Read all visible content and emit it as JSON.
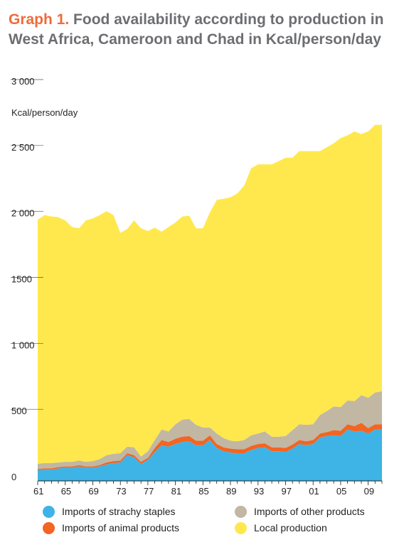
{
  "title": {
    "prefix": "Graph 1.",
    "text": "Food availability according to production in West Africa, Cameroon and Chad in Kcal/person/day"
  },
  "chart_data": {
    "type": "area",
    "stacked": true,
    "unit_label": "Kcal/person/day",
    "x": [
      1961,
      1962,
      1963,
      1964,
      1965,
      1966,
      1967,
      1968,
      1969,
      1970,
      1971,
      1972,
      1973,
      1974,
      1975,
      1976,
      1977,
      1978,
      1979,
      1980,
      1981,
      1982,
      1983,
      1984,
      1985,
      1986,
      1987,
      1988,
      1989,
      1990,
      1991,
      1992,
      1993,
      1994,
      1995,
      1996,
      1997,
      1998,
      1999,
      2000,
      2001,
      2002,
      2003,
      2004,
      2005,
      2006,
      2007,
      2008,
      2009,
      2010,
      2011
    ],
    "x_tick_labels": [
      "61",
      "65",
      "69",
      "73",
      "77",
      "81",
      "85",
      "89",
      "93",
      "97",
      "01",
      "05",
      "09"
    ],
    "x_tick_values": [
      1961,
      1965,
      1969,
      1973,
      1977,
      1981,
      1985,
      1989,
      1993,
      1997,
      2001,
      2005,
      2009
    ],
    "y_tick_labels": [
      "0",
      "500",
      "1 000",
      "1500",
      "2 000",
      "2 500",
      "3 000"
    ],
    "y_tick_values": [
      0,
      500,
      1000,
      1500,
      2000,
      2500,
      3000
    ],
    "ylim": [
      0,
      3000
    ],
    "xlim": [
      1961,
      2011
    ],
    "legend_position": "bottom",
    "series": [
      {
        "name": "Imports of strachy staples",
        "color": "#3db4e5",
        "values": [
          80,
          85,
          85,
          95,
          100,
          100,
          110,
          100,
          100,
          110,
          125,
          135,
          140,
          195,
          180,
          130,
          160,
          220,
          270,
          260,
          280,
          295,
          300,
          270,
          270,
          310,
          250,
          225,
          215,
          210,
          210,
          235,
          250,
          255,
          225,
          225,
          220,
          245,
          280,
          270,
          280,
          330,
          340,
          345,
          340,
          390,
          375,
          380,
          360,
          390,
          390
        ]
      },
      {
        "name": "Imports of animal products",
        "color": "#f26522",
        "values": [
          10,
          10,
          10,
          10,
          10,
          10,
          10,
          10,
          10,
          10,
          15,
          15,
          15,
          15,
          15,
          15,
          15,
          30,
          40,
          35,
          40,
          40,
          40,
          35,
          35,
          35,
          30,
          30,
          30,
          30,
          30,
          30,
          30,
          30,
          30,
          30,
          30,
          30,
          30,
          30,
          30,
          30,
          30,
          40,
          40,
          40,
          40,
          60,
          40,
          40,
          40
        ]
      },
      {
        "name": "Imports of other products",
        "color": "#c1b7a3",
        "values": [
          40,
          40,
          40,
          35,
          35,
          35,
          35,
          35,
          40,
          45,
          55,
          55,
          55,
          50,
          60,
          40,
          50,
          60,
          80,
          80,
          110,
          130,
          130,
          120,
          100,
          60,
          80,
          70,
          60,
          60,
          70,
          80,
          80,
          90,
          80,
          80,
          90,
          110,
          120,
          125,
          120,
          140,
          160,
          180,
          180,
          180,
          190,
          210,
          230,
          240,
          250
        ]
      },
      {
        "name": "Local production",
        "color": "#ffe84d",
        "values": [
          1850,
          1880,
          1870,
          1860,
          1830,
          1780,
          1760,
          1830,
          1840,
          1850,
          1850,
          1810,
          1670,
          1650,
          1720,
          1730,
          1670,
          1610,
          1500,
          1550,
          1530,
          1540,
          1540,
          1490,
          1510,
          1630,
          1770,
          1815,
          1845,
          1880,
          1930,
          2025,
          2040,
          2025,
          2065,
          2090,
          2110,
          2065,
          2070,
          2075,
          2070,
          2000,
          2000,
          1995,
          2040,
          2010,
          2045,
          1980,
          2020,
          2030,
          2020
        ]
      }
    ]
  }
}
